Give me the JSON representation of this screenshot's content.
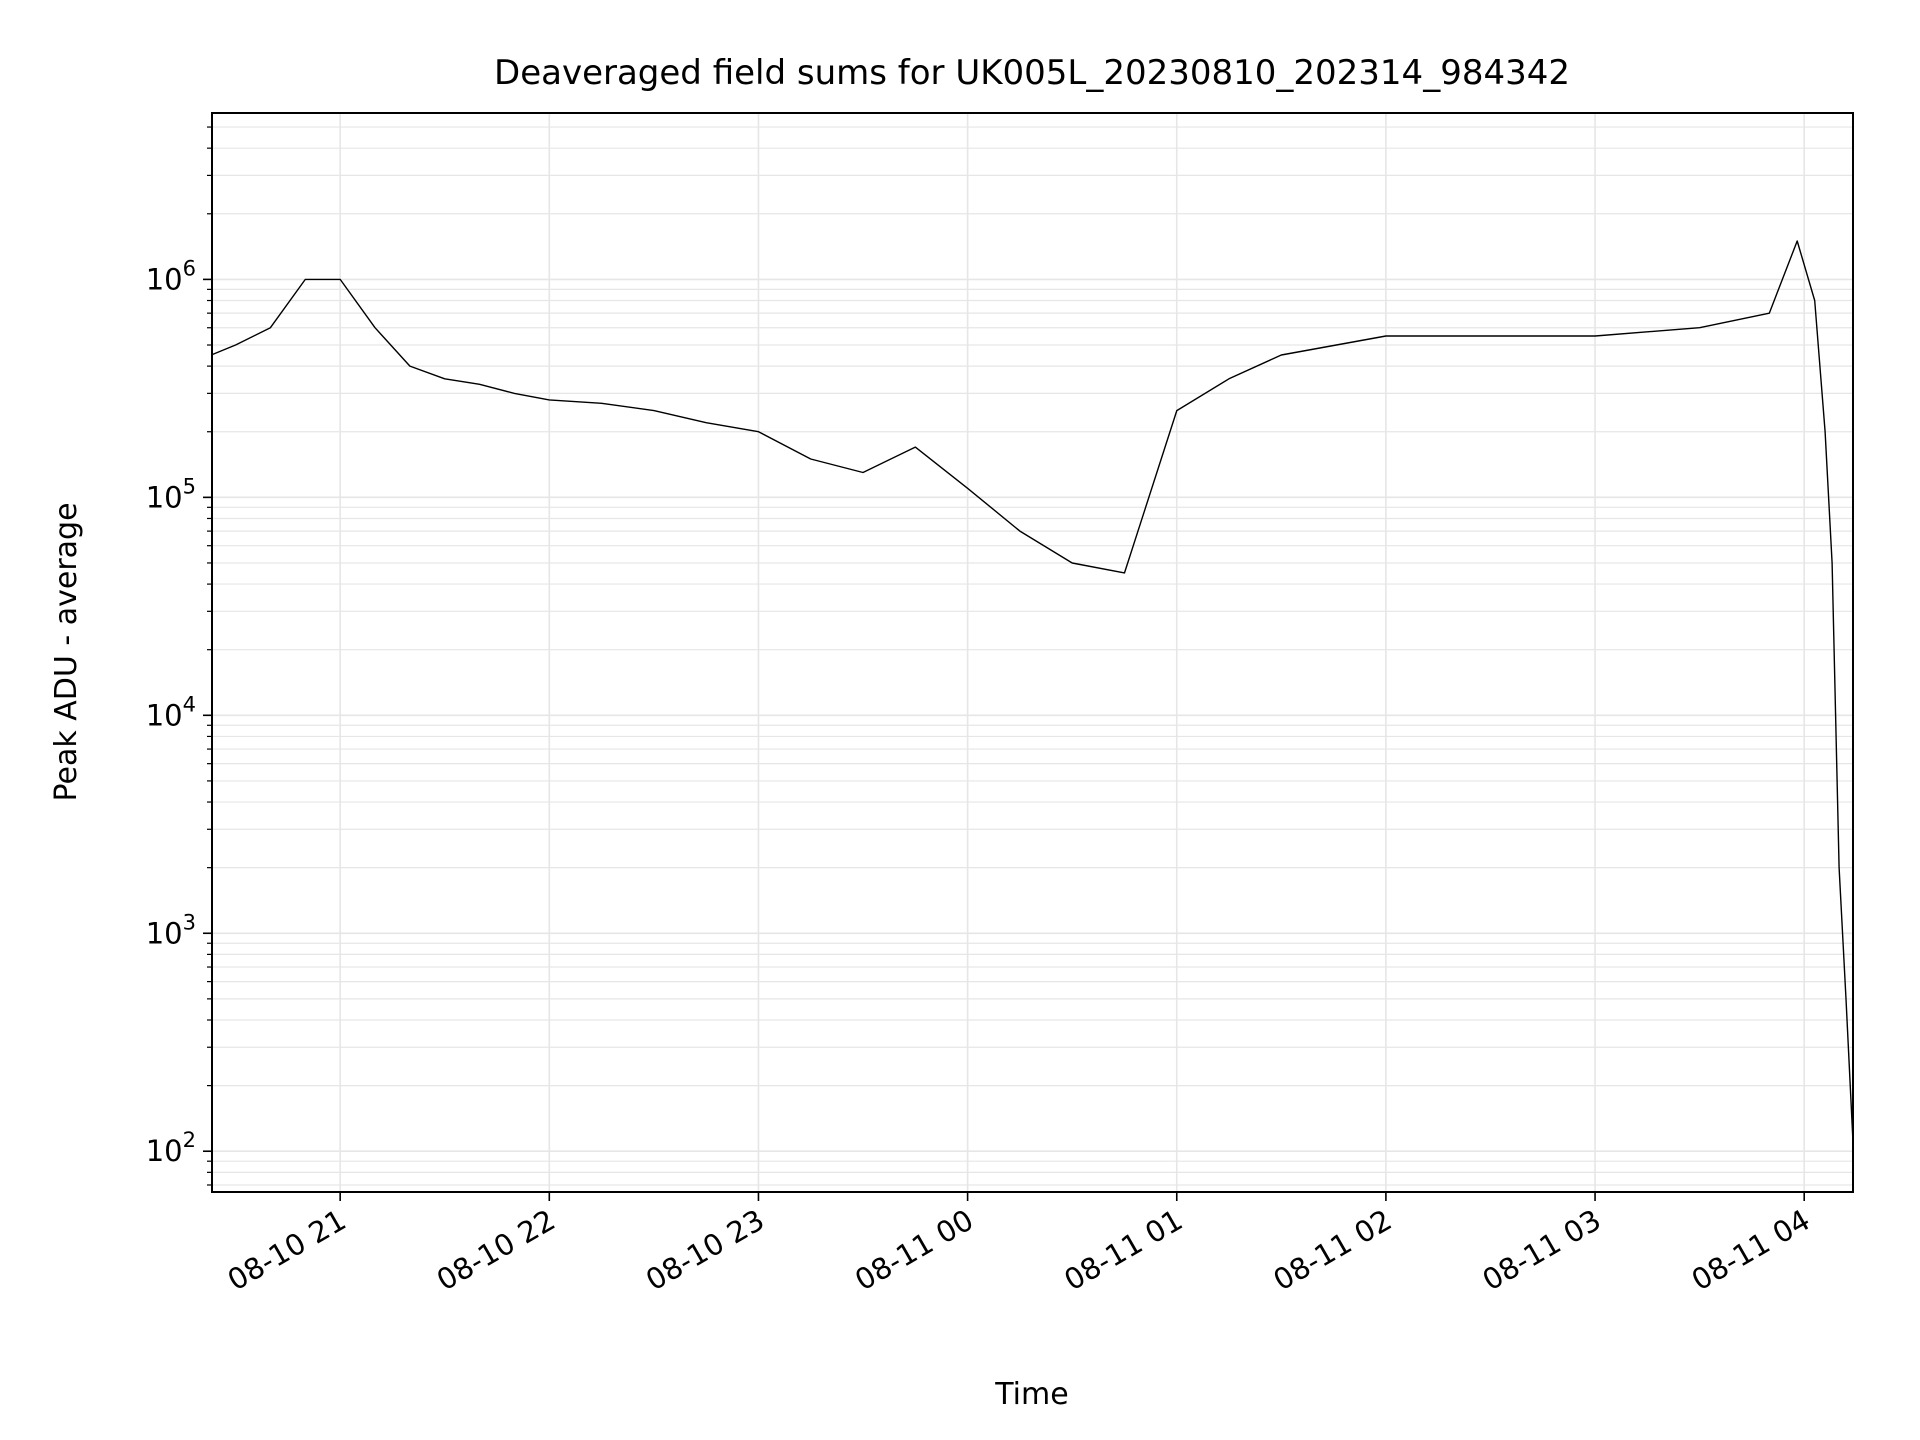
{
  "chart_data": {
    "type": "line",
    "title": "Deaveraged field sums for UK005L_20230810_202314_984342",
    "xlabel": "Time",
    "ylabel": "Peak ADU - average",
    "yscale": "log",
    "ylim": [
      65,
      5800000
    ],
    "xlim": [
      "2023-08-10 20:23:14",
      "2023-08-11 04:14:00"
    ],
    "x_ticks": [
      {
        "value": "2023-08-10 21:00",
        "label": "08-10 21"
      },
      {
        "value": "2023-08-10 22:00",
        "label": "08-10 22"
      },
      {
        "value": "2023-08-10 23:00",
        "label": "08-10 23"
      },
      {
        "value": "2023-08-11 00:00",
        "label": "08-11 00"
      },
      {
        "value": "2023-08-11 01:00",
        "label": "08-11 01"
      },
      {
        "value": "2023-08-11 02:00",
        "label": "08-11 02"
      },
      {
        "value": "2023-08-11 03:00",
        "label": "08-11 03"
      },
      {
        "value": "2023-08-11 04:00",
        "label": "08-11 04"
      }
    ],
    "y_ticks": [
      {
        "value": 100,
        "base": "10",
        "exp": "2"
      },
      {
        "value": 1000,
        "base": "10",
        "exp": "3"
      },
      {
        "value": 10000,
        "base": "10",
        "exp": "4"
      },
      {
        "value": 100000,
        "base": "10",
        "exp": "5"
      },
      {
        "value": 1000000,
        "base": "10",
        "exp": "6"
      }
    ],
    "grid": true,
    "grid_minor": true,
    "line_color": "#000000",
    "grid_color": "#e6e6e6",
    "series": [
      {
        "x": [
          "2023-08-10 20:23",
          "2023-08-10 20:30",
          "2023-08-10 20:40",
          "2023-08-10 20:50",
          "2023-08-10 21:00",
          "2023-08-10 21:10",
          "2023-08-10 21:20",
          "2023-08-10 21:30",
          "2023-08-10 21:40",
          "2023-08-10 21:50",
          "2023-08-10 22:00",
          "2023-08-10 22:15",
          "2023-08-10 22:30",
          "2023-08-10 22:45",
          "2023-08-10 23:00",
          "2023-08-10 23:15",
          "2023-08-10 23:30",
          "2023-08-10 23:45",
          "2023-08-11 00:00",
          "2023-08-11 00:15",
          "2023-08-11 00:30",
          "2023-08-11 00:45",
          "2023-08-11 01:00",
          "2023-08-11 01:15",
          "2023-08-11 01:30",
          "2023-08-11 02:00",
          "2023-08-11 02:30",
          "2023-08-11 03:00",
          "2023-08-11 03:30",
          "2023-08-11 03:50",
          "2023-08-11 03:58",
          "2023-08-11 04:03",
          "2023-08-11 04:06",
          "2023-08-11 04:08",
          "2023-08-11 04:10",
          "2023-08-11 04:12",
          "2023-08-11 04:14"
        ],
        "y": [
          450000,
          500000,
          600000,
          1000000,
          1000000,
          600000,
          400000,
          350000,
          330000,
          300000,
          280000,
          270000,
          250000,
          220000,
          200000,
          150000,
          130000,
          170000,
          110000,
          70000,
          50000,
          45000,
          250000,
          350000,
          450000,
          550000,
          550000,
          550000,
          600000,
          700000,
          1500000,
          800000,
          200000,
          50000,
          2000,
          500,
          110
        ]
      }
    ]
  }
}
